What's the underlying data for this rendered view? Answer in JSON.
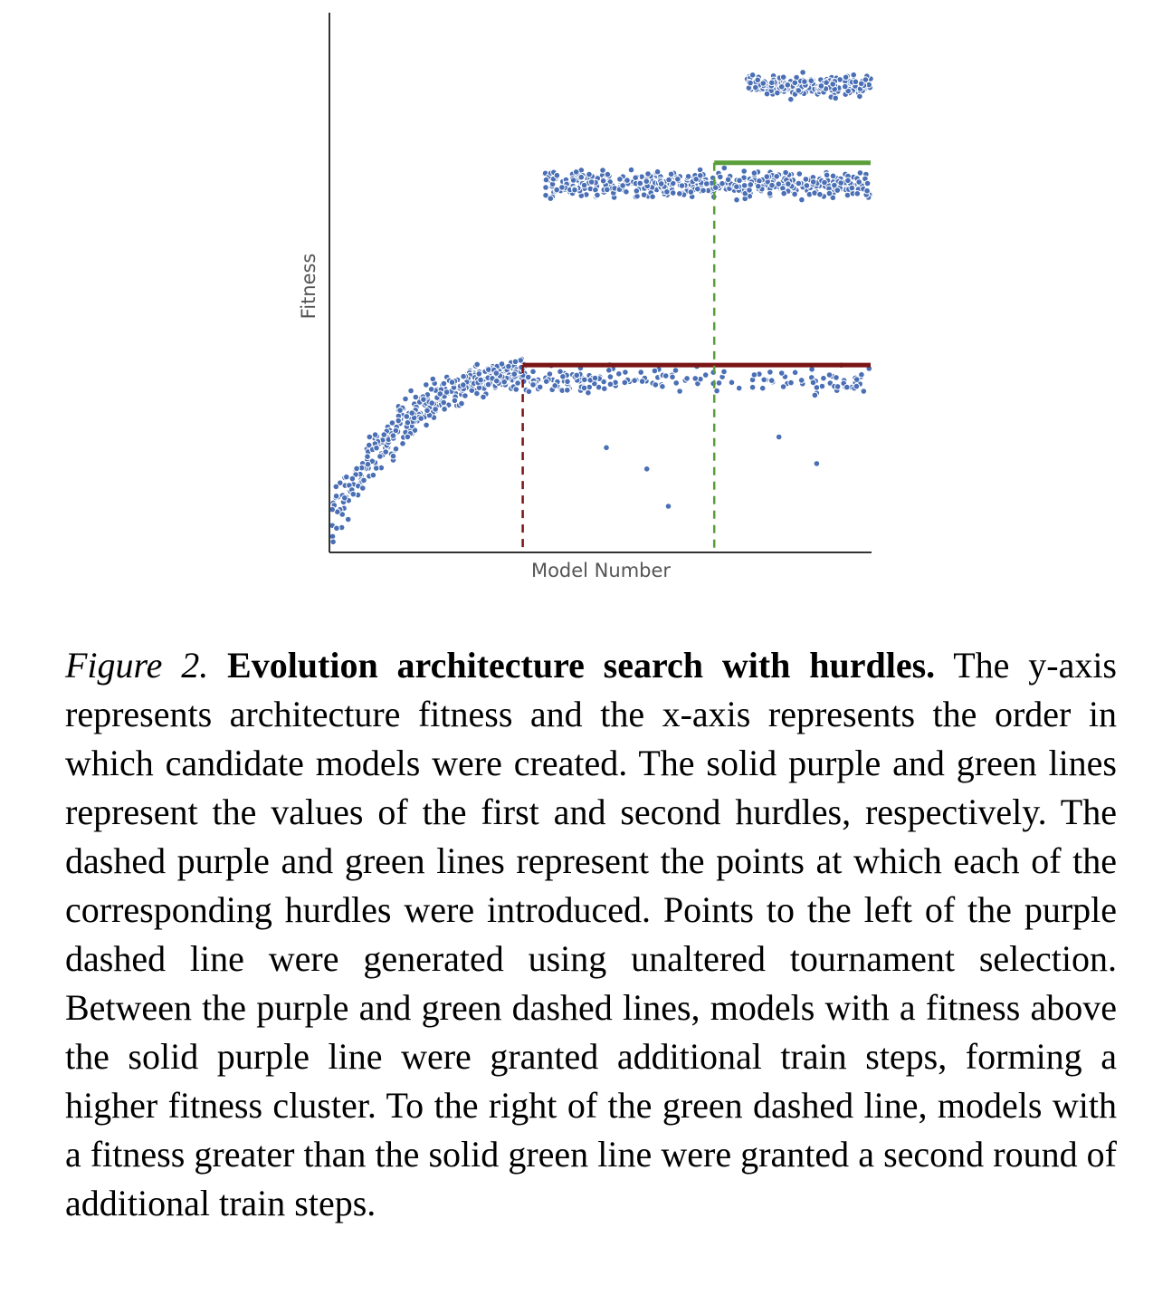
{
  "chart_data": {
    "type": "scatter",
    "title": "",
    "xlabel": "Model Number",
    "ylabel": "Fitness",
    "xlim": [
      0,
      1000
    ],
    "ylim": [
      0,
      1000
    ],
    "grid": false,
    "legend": "none",
    "show_tick_labels": false,
    "colors": {
      "points": "#4a6fb5",
      "point_edge": "#ffffff",
      "hurdle1": "#7b1414",
      "hurdle2": "#5a9e3a",
      "axis": "#333333"
    },
    "series": [
      {
        "name": "",
        "generation": "clusters",
        "clusters": [
          {
            "x": [
              0,
              360
            ],
            "y_start": 60,
            "y_end": 330,
            "spread": 90
          },
          {
            "x": [
              360,
              1000
            ],
            "y": 320,
            "spread": 45,
            "outliers": [
              [
                510,
                190
              ],
              [
                585,
                150
              ],
              [
                625,
                80
              ],
              [
                830,
                210
              ],
              [
                900,
                160
              ]
            ]
          },
          {
            "x": [
              395,
              1000
            ],
            "y": 685,
            "spread": 38
          },
          {
            "x": [
              770,
              1000
            ],
            "y": 870,
            "spread": 30
          }
        ]
      }
    ],
    "hurdles": [
      {
        "id": "hurdle-1",
        "x_introduced": 355,
        "fitness": 345,
        "line_style": "solid + dashed",
        "color": "#7b1414"
      },
      {
        "id": "hurdle-2",
        "x_introduced": 710,
        "fitness": 725,
        "line_style": "solid + dashed",
        "color": "#5a9e3a"
      }
    ]
  },
  "caption": {
    "label": "Figure 2.",
    "title": "Evolution architecture search with hurdles.",
    "text": " The y-axis represents architecture fitness and the x-axis represents the order in which candidate models were created. The solid purple and green lines represent the values of the first and second hurdles, respectively. The dashed purple and green lines represent the points at which each of the corresponding hurdles were introduced. Points to the left of the purple dashed line were generated using unaltered tournament selection. Between the purple and green dashed lines, models with a fitness above the solid purple line were granted additional train steps, forming a higher fitness cluster. To the right of the green dashed line, models with a fitness greater than the solid green line were granted a second round of additional train steps."
  }
}
